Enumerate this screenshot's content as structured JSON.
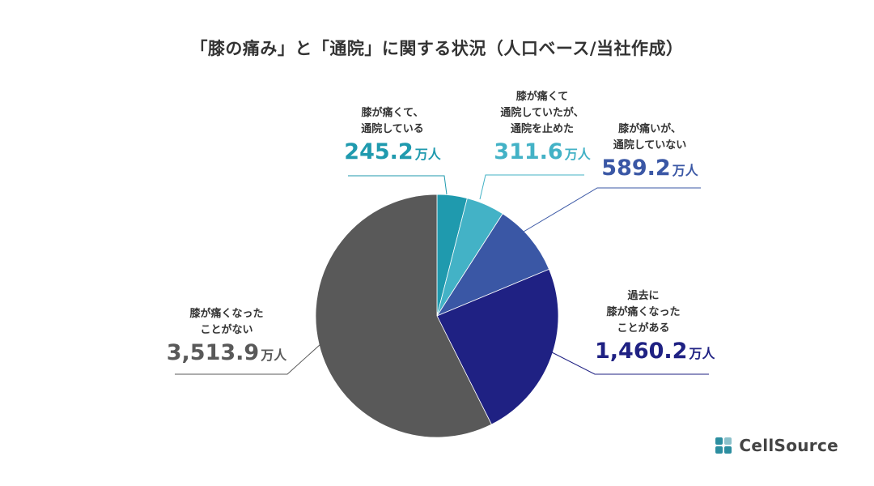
{
  "chart_data": {
    "type": "pie",
    "title": "「膝の痛み」と「通院」に関する状況（人口ベース/当社作成）",
    "unit": "万人",
    "slices": [
      {
        "label_lines": [
          "膝が痛くて、",
          "通院している"
        ],
        "value": 245.2,
        "value_text": "245.2",
        "color": "#1f9aae"
      },
      {
        "label_lines": [
          "膝が痛くて",
          "通院していたが、",
          "通院を止めた"
        ],
        "value": 311.6,
        "value_text": "311.6",
        "color": "#43b2c6"
      },
      {
        "label_lines": [
          "膝が痛いが、",
          "通院していない"
        ],
        "value": 589.2,
        "value_text": "589.2",
        "color": "#3a57a5"
      },
      {
        "label_lines": [
          "過去に",
          "膝が痛くなった",
          "ことがある"
        ],
        "value": 1460.2,
        "value_text": "1,460.2",
        "color": "#1f2183"
      },
      {
        "label_lines": [
          "膝が痛くなった",
          "ことがない"
        ],
        "value": 3513.9,
        "value_text": "3,513.9",
        "color": "#595959"
      }
    ],
    "start_angle": "12 o'clock",
    "direction": "clockwise",
    "legend": "none (direct labels)"
  },
  "logo": {
    "text": "CellSource",
    "mark_color": "#2c8ea0",
    "icon": "cellsource-logo-icon"
  }
}
